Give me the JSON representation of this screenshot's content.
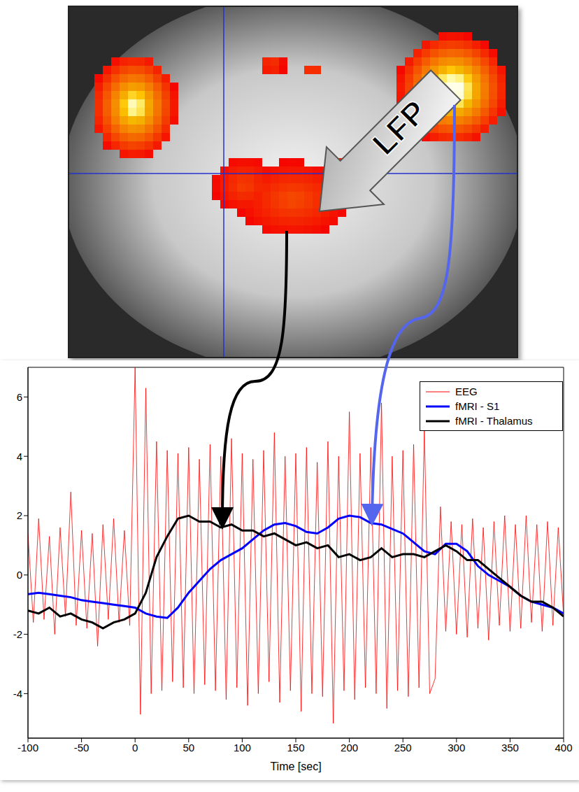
{
  "chart_data": {
    "type": "line",
    "annotations": [
      "LFP"
    ],
    "x_label": "Time [sec]",
    "xlim": [
      -100,
      400
    ],
    "xticks": [
      -100,
      -50,
      0,
      50,
      100,
      150,
      200,
      250,
      300,
      350,
      400
    ],
    "ylim": [
      -5.5,
      7
    ],
    "yticks": [
      -4,
      -2,
      0,
      2,
      4,
      6
    ],
    "grid": false,
    "legend": "upper right",
    "series": [
      {
        "name": "EEG",
        "color": "#ff0000",
        "line_style": "solid",
        "x": [
          -100,
          -95,
          -90,
          -85,
          -80,
          -75,
          -70,
          -65,
          -60,
          -55,
          -50,
          -45,
          -40,
          -35,
          -30,
          -25,
          -20,
          -15,
          -10,
          -5,
          0,
          5,
          10,
          15,
          20,
          25,
          30,
          35,
          40,
          45,
          50,
          55,
          60,
          65,
          70,
          75,
          80,
          85,
          90,
          95,
          100,
          105,
          110,
          115,
          120,
          125,
          130,
          135,
          140,
          145,
          150,
          155,
          160,
          165,
          170,
          175,
          180,
          185,
          190,
          195,
          200,
          205,
          210,
          215,
          220,
          225,
          230,
          235,
          240,
          245,
          250,
          255,
          260,
          265,
          270,
          275,
          280,
          285,
          290,
          295,
          300,
          305,
          310,
          315,
          320,
          325,
          330,
          335,
          340,
          345,
          350,
          355,
          360,
          365,
          370,
          375,
          380,
          385,
          390,
          395,
          400
        ],
        "values": [
          1.4,
          -1.6,
          1.9,
          -1.5,
          1.3,
          -2.0,
          1.6,
          -1.4,
          2.8,
          -1.7,
          1.5,
          -1.8,
          1.4,
          -2.4,
          1.7,
          -1.5,
          1.9,
          -1.6,
          1.5,
          -1.7,
          7.0,
          -4.7,
          6.3,
          -4.0,
          4.5,
          -3.9,
          4.2,
          -3.6,
          4.1,
          -3.8,
          4.3,
          -4.0,
          3.9,
          -3.7,
          4.4,
          -3.9,
          4.0,
          -4.2,
          4.6,
          -3.8,
          4.1,
          -4.4,
          3.9,
          -4.0,
          4.2,
          -3.6,
          4.8,
          -4.3,
          4.0,
          -3.9,
          4.1,
          -4.6,
          4.3,
          -4.0,
          3.8,
          -4.1,
          4.5,
          -5.0,
          4.0,
          -3.9,
          5.5,
          -4.2,
          4.1,
          -3.8,
          4.3,
          -4.0,
          5.8,
          -4.5,
          4.0,
          -3.9,
          4.2,
          -4.1,
          4.4,
          -3.8,
          4.9,
          -4.0,
          -3.5,
          2.3,
          -1.9,
          1.8,
          -2.0,
          1.7,
          -2.1,
          1.9,
          -1.8,
          1.6,
          -2.2,
          1.8,
          -1.7,
          2.0,
          -1.9,
          1.7,
          -1.8,
          2.0,
          -1.6,
          1.7,
          -1.9,
          1.8,
          -1.7,
          1.6,
          -1.4
        ]
      },
      {
        "name": "fMRI - S1",
        "color": "#0000ff",
        "line_style": "solid",
        "x": [
          -100,
          -90,
          -80,
          -70,
          -60,
          -50,
          -40,
          -30,
          -20,
          -10,
          0,
          10,
          20,
          30,
          40,
          50,
          60,
          70,
          80,
          90,
          100,
          110,
          120,
          130,
          140,
          150,
          160,
          170,
          180,
          190,
          200,
          210,
          220,
          230,
          240,
          250,
          260,
          270,
          280,
          290,
          300,
          310,
          320,
          330,
          340,
          350,
          360,
          370,
          380,
          390,
          400
        ],
        "values": [
          -0.65,
          -0.6,
          -0.65,
          -0.7,
          -0.75,
          -0.85,
          -0.9,
          -0.95,
          -1.0,
          -1.05,
          -1.1,
          -1.3,
          -1.4,
          -1.45,
          -1.1,
          -0.6,
          -0.2,
          0.2,
          0.5,
          0.7,
          0.9,
          1.2,
          1.5,
          1.7,
          1.75,
          1.65,
          1.45,
          1.4,
          1.6,
          1.9,
          2.0,
          1.95,
          1.75,
          1.7,
          1.55,
          1.4,
          1.1,
          0.8,
          0.7,
          1.05,
          1.05,
          0.8,
          0.3,
          0.0,
          -0.2,
          -0.4,
          -0.7,
          -0.9,
          -1.0,
          -1.1,
          -1.3
        ]
      },
      {
        "name": "fMRI - Thalamus",
        "color": "#000000",
        "line_style": "solid",
        "x": [
          -100,
          -90,
          -80,
          -70,
          -60,
          -50,
          -40,
          -30,
          -20,
          -10,
          0,
          10,
          20,
          30,
          40,
          50,
          60,
          70,
          80,
          90,
          100,
          110,
          120,
          130,
          140,
          150,
          160,
          170,
          180,
          190,
          200,
          210,
          220,
          230,
          240,
          250,
          260,
          270,
          280,
          290,
          300,
          310,
          320,
          330,
          340,
          350,
          360,
          370,
          380,
          390,
          400
        ],
        "values": [
          -1.2,
          -1.3,
          -1.1,
          -1.4,
          -1.3,
          -1.5,
          -1.6,
          -1.8,
          -1.6,
          -1.5,
          -1.3,
          -0.6,
          0.6,
          1.3,
          1.9,
          2.0,
          1.8,
          1.8,
          1.6,
          1.7,
          1.5,
          1.5,
          1.3,
          1.4,
          1.2,
          1.0,
          1.1,
          0.9,
          1.0,
          0.6,
          0.7,
          0.5,
          0.6,
          0.9,
          0.6,
          0.7,
          0.7,
          0.6,
          0.8,
          1.0,
          0.8,
          0.5,
          0.5,
          0.2,
          -0.1,
          -0.4,
          -0.7,
          -0.9,
          -0.9,
          -1.1,
          -1.4
        ]
      }
    ]
  }
}
